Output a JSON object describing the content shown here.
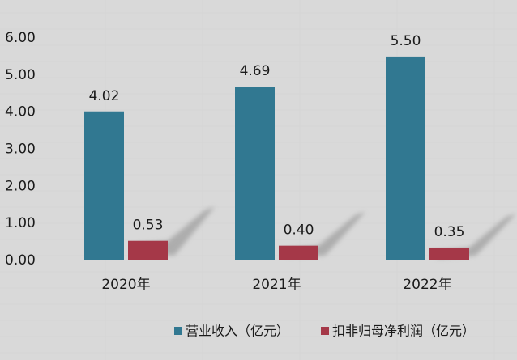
{
  "chart_data": {
    "type": "bar",
    "title": "",
    "xlabel": "",
    "ylabel": "",
    "categories": [
      "2020年",
      "2021年",
      "2022年"
    ],
    "series": [
      {
        "name": "营业收入（亿元）",
        "values": [
          4.02,
          4.69,
          5.5
        ],
        "color": "#317891"
      },
      {
        "name": "扣非归母净利润（亿元）",
        "values": [
          0.53,
          0.4,
          0.35
        ],
        "color": "#A53848"
      }
    ],
    "data_labels": [
      "4.02",
      "4.69",
      "5.50",
      "0.53",
      "0.40",
      "0.35"
    ],
    "y_tick_labels": [
      "0.00",
      "1.00",
      "2.00",
      "3.00",
      "4.00",
      "5.00",
      "6.00"
    ],
    "ylim": [
      0,
      6
    ],
    "grid": false,
    "legend_position": "bottom-right",
    "background_color": "#D9D9D9"
  }
}
